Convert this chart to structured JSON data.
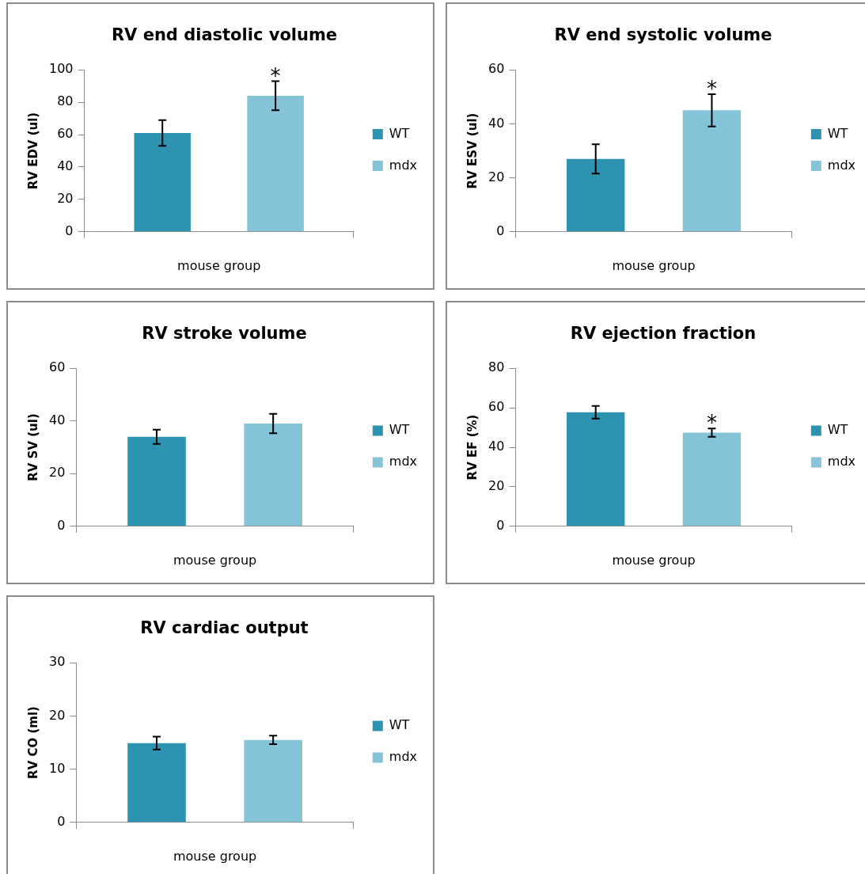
{
  "chart_data": [
    {
      "type": "bar",
      "title": "RV end diastolic volume",
      "xlabel": "mouse group",
      "ylabel": "RV EDV (ul)",
      "categories": [
        null
      ],
      "ylim": [
        0,
        100
      ],
      "yticks": [
        0,
        20,
        40,
        60,
        80,
        100
      ],
      "legend": "right",
      "annotations": [
        "*"
      ],
      "series": [
        {
          "name": "WT",
          "color": "#2e93b0",
          "values": [
            61
          ],
          "errors": [
            8
          ]
        },
        {
          "name": "mdx",
          "color": "#84c3d8",
          "values": [
            84
          ],
          "errors": [
            9
          ]
        }
      ]
    },
    {
      "type": "bar",
      "title": "RV end systolic volume",
      "xlabel": "mouse group",
      "ylabel": "RV ESV (ul)",
      "categories": [
        null
      ],
      "ylim": [
        0,
        60
      ],
      "yticks": [
        0,
        20,
        40,
        60
      ],
      "legend": "right",
      "annotations": [
        "*"
      ],
      "series": [
        {
          "name": "WT",
          "color": "#2e93b0",
          "values": [
            27
          ],
          "errors": [
            5.4
          ]
        },
        {
          "name": "mdx",
          "color": "#84c3d8",
          "values": [
            45
          ],
          "errors": [
            6
          ]
        }
      ]
    },
    {
      "type": "bar",
      "title": "RV stroke volume",
      "xlabel": "mouse group",
      "ylabel": "RV SV (ul)",
      "categories": [
        null
      ],
      "ylim": [
        0,
        60
      ],
      "yticks": [
        0,
        20,
        40,
        60
      ],
      "legend": "right",
      "series": [
        {
          "name": "WT",
          "color": "#2e93b0",
          "values": [
            34
          ],
          "errors": [
            2.7
          ]
        },
        {
          "name": "mdx",
          "color": "#84c3d8",
          "values": [
            39
          ],
          "errors": [
            3.7
          ]
        }
      ]
    },
    {
      "type": "bar",
      "title": "RV ejection fraction",
      "xlabel": "mouse group",
      "ylabel": "RV EF (%)",
      "categories": [
        null
      ],
      "ylim": [
        0,
        80
      ],
      "yticks": [
        0,
        20,
        40,
        60,
        80
      ],
      "legend": "right",
      "annotations": [
        "*"
      ],
      "series": [
        {
          "name": "WT",
          "color": "#2e93b0",
          "values": [
            57.7
          ],
          "errors": [
            3.2
          ]
        },
        {
          "name": "mdx",
          "color": "#84c3d8",
          "values": [
            47.4
          ],
          "errors": [
            2.1
          ]
        }
      ]
    },
    {
      "type": "bar",
      "title": "RV cardiac output",
      "xlabel": "mouse group",
      "ylabel": "RV CO (ml)",
      "categories": [
        null
      ],
      "ylim": [
        0,
        30
      ],
      "yticks": [
        0,
        10,
        20,
        30
      ],
      "legend": "right",
      "series": [
        {
          "name": "WT",
          "color": "#2e93b0",
          "values": [
            14.9
          ],
          "errors": [
            1.2
          ]
        },
        {
          "name": "mdx",
          "color": "#84c3d8",
          "values": [
            15.5
          ],
          "errors": [
            0.8
          ]
        }
      ]
    }
  ]
}
